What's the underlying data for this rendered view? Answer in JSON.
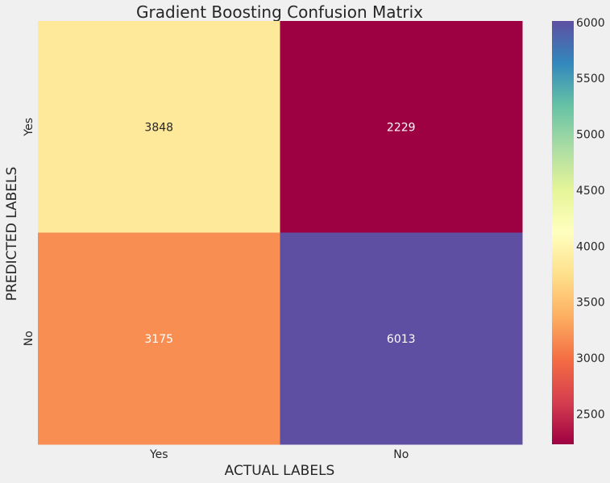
{
  "chart_data": {
    "type": "heatmap",
    "title": "Gradient Boosting Confusion Matrix",
    "xlabel": "ACTUAL LABELS",
    "ylabel": "PREDICTED LABELS",
    "x_categories": [
      "Yes",
      "No"
    ],
    "y_categories": [
      "Yes",
      "No"
    ],
    "values": [
      [
        3848,
        2229
      ],
      [
        3175,
        6013
      ]
    ],
    "colormap": "Spectral",
    "colorbar": {
      "min": 2229,
      "max": 6013,
      "ticks": [
        2500,
        3000,
        3500,
        4000,
        4500,
        5000,
        5500,
        6000
      ]
    },
    "cell_colors": [
      [
        "#fee89a",
        "#9e0142"
      ],
      [
        "#f98e52",
        "#5e4fa2"
      ]
    ],
    "text_colors": [
      [
        "#262626",
        "#ffffff"
      ],
      [
        "#ffffff",
        "#ffffff"
      ]
    ]
  }
}
